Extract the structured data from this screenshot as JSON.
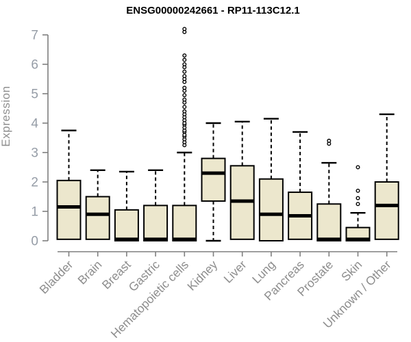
{
  "title": "ENSG00000242661 - RP11-113C12.1",
  "chart_data": {
    "type": "box",
    "title": "ENSG00000242661 - RP11-113C12.1",
    "ylabel": "Expression",
    "xlabel": "",
    "ylim": [
      0,
      7.3
    ],
    "yticks": [
      0,
      1,
      2,
      3,
      4,
      5,
      6,
      7
    ],
    "grid": false,
    "legend": "none",
    "categories": [
      "Bladder",
      "Brain",
      "Breast",
      "Gastric",
      "Hematopoietic cells",
      "Kidney",
      "Liver",
      "Lung",
      "Pancreas",
      "Prostate",
      "Skin",
      "Unknown / Other"
    ],
    "boxes": [
      {
        "category": "Bladder",
        "low": 0,
        "q1": 0.05,
        "median": 1.15,
        "q3": 2.05,
        "high": 3.75,
        "outliers": []
      },
      {
        "category": "Brain",
        "low": 0,
        "q1": 0.05,
        "median": 0.9,
        "q3": 1.5,
        "high": 2.4,
        "outliers": []
      },
      {
        "category": "Breast",
        "low": 0,
        "q1": 0,
        "median": 0.05,
        "q3": 1.05,
        "high": 2.35,
        "outliers": []
      },
      {
        "category": "Gastric",
        "low": 0,
        "q1": 0,
        "median": 0.05,
        "q3": 1.2,
        "high": 2.4,
        "outliers": []
      },
      {
        "category": "Hematopoietic cells",
        "low": 0,
        "q1": 0,
        "median": 0.05,
        "q3": 1.2,
        "high": 3.0,
        "outliers": [
          3.25,
          3.35,
          3.45,
          3.55,
          3.6,
          3.7,
          3.75,
          3.85,
          3.95,
          4.0,
          4.1,
          4.2,
          4.3,
          4.4,
          4.55,
          4.7,
          4.8,
          4.95,
          5.1,
          5.2,
          5.4,
          5.5,
          5.6,
          5.75,
          5.9,
          6.0,
          6.15,
          6.3,
          7.1,
          7.2
        ]
      },
      {
        "category": "Kidney",
        "low": 0,
        "q1": 1.35,
        "median": 2.3,
        "q3": 2.8,
        "high": 4.0,
        "outliers": []
      },
      {
        "category": "Liver",
        "low": 0,
        "q1": 0.05,
        "median": 1.35,
        "q3": 2.55,
        "high": 4.05,
        "outliers": []
      },
      {
        "category": "Lung",
        "low": 0,
        "q1": 0,
        "median": 0.9,
        "q3": 2.1,
        "high": 4.15,
        "outliers": []
      },
      {
        "category": "Pancreas",
        "low": 0,
        "q1": 0.05,
        "median": 0.85,
        "q3": 1.65,
        "high": 3.7,
        "outliers": []
      },
      {
        "category": "Prostate",
        "low": 0,
        "q1": 0,
        "median": 0.05,
        "q3": 1.25,
        "high": 2.65,
        "outliers": [
          3.3,
          3.4
        ]
      },
      {
        "category": "Skin",
        "low": 0,
        "q1": 0,
        "median": 0.05,
        "q3": 0.45,
        "high": 0.95,
        "outliers": [
          1.25,
          1.45,
          1.7,
          2.5
        ]
      },
      {
        "category": "Unknown / Other",
        "low": 0,
        "q1": 0.05,
        "median": 1.2,
        "q3": 2.0,
        "high": 4.3,
        "outliers": []
      }
    ]
  },
  "colors": {
    "box_fill": "#ece7cd",
    "box_border": "#000000",
    "median": "#000000",
    "whisker": "#000000",
    "axis_line": "#7f7f7f",
    "y_tick_label": "#959ca6",
    "x_tick_label": "#8d8d8d",
    "axis_title": "#8f8f8f",
    "title": "#000000",
    "background": "#ffffff"
  }
}
